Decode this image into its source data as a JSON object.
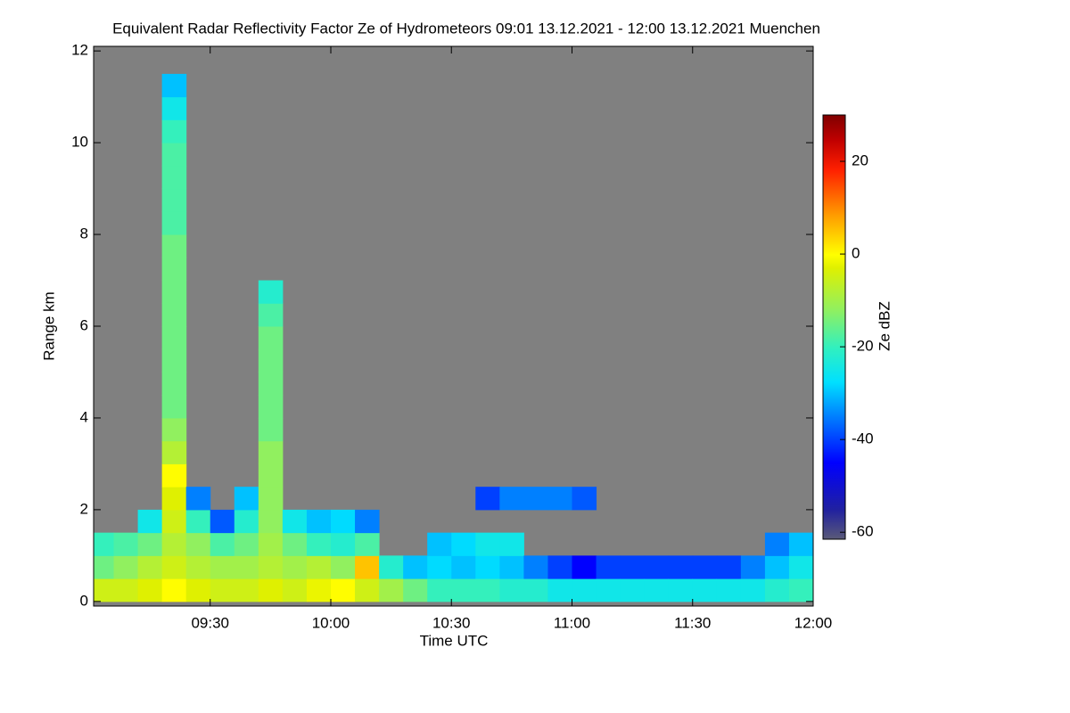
{
  "chart_data": {
    "type": "heatmap",
    "title": "Equivalent Radar Reflectivity Factor Ze of Hydrometeors   09:01 13.12.2021 - 12:00 13.12.2021 Muenchen",
    "xlabel": "Time UTC",
    "ylabel": "Range km",
    "colorbar_label": "Ze dBZ",
    "xlim": [
      9.0167,
      12.0
    ],
    "ylim": [
      -0.1,
      12.1
    ],
    "xticks": [
      {
        "value": 9.5,
        "label": "09:30"
      },
      {
        "value": 10.0,
        "label": "10:00"
      },
      {
        "value": 10.5,
        "label": "10:30"
      },
      {
        "value": 11.0,
        "label": "11:00"
      },
      {
        "value": 11.5,
        "label": "11:30"
      },
      {
        "value": 12.0,
        "label": "12:00"
      }
    ],
    "yticks": [
      0,
      2,
      4,
      6,
      8,
      10,
      12
    ],
    "zlim": [
      -61.5,
      30
    ],
    "zticks": [
      -60,
      -40,
      -20,
      0,
      20
    ],
    "background": "#808080",
    "xbins": [
      9.0,
      9.1,
      9.2,
      9.3,
      9.4,
      9.5,
      9.6,
      9.7,
      9.8,
      9.9,
      10.0,
      10.1,
      10.2,
      10.3,
      10.4,
      10.5,
      10.6,
      10.7,
      10.8,
      10.9,
      11.0,
      11.1,
      11.2,
      11.3,
      11.4,
      11.5,
      11.6,
      11.7,
      11.8,
      11.9,
      12.0
    ],
    "ybins": [
      0,
      0.5,
      1,
      1.5,
      2,
      2.5,
      3,
      3.5,
      4,
      4.5,
      5,
      5.5,
      6,
      6.5,
      7,
      7.5,
      8,
      8.5,
      9,
      9.5,
      10,
      10.5,
      11,
      11.5,
      12
    ],
    "z": [
      [
        -5,
        -15,
        -20,
        null,
        null,
        null,
        null,
        null,
        null,
        null,
        null,
        null,
        null,
        null,
        null,
        null,
        null,
        null,
        null,
        null,
        null,
        null,
        null,
        null
      ],
      [
        -5,
        -12,
        -18,
        null,
        null,
        null,
        null,
        null,
        null,
        null,
        null,
        null,
        null,
        null,
        null,
        null,
        null,
        null,
        null,
        null,
        null,
        null,
        null,
        null
      ],
      [
        -3,
        -8,
        -15,
        -25,
        null,
        null,
        null,
        null,
        null,
        null,
        null,
        null,
        null,
        null,
        null,
        null,
        null,
        null,
        null,
        null,
        null,
        null,
        null,
        null
      ],
      [
        0,
        -5,
        -8,
        -5,
        -3,
        0,
        -8,
        -12,
        -15,
        -15,
        -15,
        -15,
        -15,
        -15,
        -15,
        -15,
        -18,
        -18,
        -18,
        -18,
        -20,
        -25,
        -30,
        null
      ],
      [
        -3,
        -8,
        -12,
        -20,
        -35,
        null,
        null,
        null,
        null,
        null,
        null,
        null,
        null,
        null,
        null,
        null,
        null,
        null,
        null,
        null,
        null,
        null,
        null,
        null
      ],
      [
        -5,
        -10,
        -18,
        -38,
        null,
        null,
        null,
        null,
        null,
        null,
        null,
        null,
        null,
        null,
        null,
        null,
        null,
        null,
        null,
        null,
        null,
        null,
        null,
        null
      ],
      [
        -5,
        -10,
        -15,
        -22,
        -30,
        null,
        null,
        null,
        null,
        null,
        null,
        null,
        null,
        null,
        null,
        null,
        null,
        null,
        null,
        null,
        null,
        null,
        null,
        null
      ],
      [
        -3,
        -8,
        -10,
        -12,
        -12,
        -12,
        -12,
        -15,
        -15,
        -15,
        -15,
        -15,
        -18,
        -22,
        null,
        null,
        null,
        null,
        null,
        null,
        null,
        null,
        null,
        null
      ],
      [
        -5,
        -10,
        -15,
        -25,
        null,
        null,
        null,
        null,
        null,
        null,
        null,
        null,
        null,
        null,
        null,
        null,
        null,
        null,
        null,
        null,
        null,
        null,
        null,
        null
      ],
      [
        -2,
        -8,
        -20,
        -30,
        null,
        null,
        null,
        null,
        null,
        null,
        null,
        null,
        null,
        null,
        null,
        null,
        null,
        null,
        null,
        null,
        null,
        null,
        null,
        null
      ],
      [
        0,
        -12,
        -22,
        -28,
        null,
        null,
        null,
        null,
        null,
        null,
        null,
        null,
        null,
        null,
        null,
        null,
        null,
        null,
        null,
        null,
        null,
        null,
        null,
        null
      ],
      [
        -5,
        5,
        -18,
        -35,
        null,
        null,
        null,
        null,
        null,
        null,
        null,
        null,
        null,
        null,
        null,
        null,
        null,
        null,
        null,
        null,
        null,
        null,
        null,
        null
      ],
      [
        -10,
        -22,
        null,
        null,
        null,
        null,
        null,
        null,
        null,
        null,
        null,
        null,
        null,
        null,
        null,
        null,
        null,
        null,
        null,
        null,
        null,
        null,
        null,
        null
      ],
      [
        -15,
        -30,
        null,
        null,
        null,
        null,
        null,
        null,
        null,
        null,
        null,
        null,
        null,
        null,
        null,
        null,
        null,
        null,
        null,
        null,
        null,
        null,
        null,
        null
      ],
      [
        -20,
        -28,
        -30,
        null,
        null,
        null,
        null,
        null,
        null,
        null,
        null,
        null,
        null,
        null,
        null,
        null,
        null,
        null,
        null,
        null,
        null,
        null,
        null,
        null
      ],
      [
        -20,
        -30,
        -28,
        null,
        null,
        null,
        null,
        null,
        null,
        null,
        null,
        null,
        null,
        null,
        null,
        null,
        null,
        null,
        null,
        null,
        null,
        null,
        null,
        null
      ],
      [
        -20,
        -28,
        -25,
        null,
        -40,
        null,
        null,
        null,
        null,
        null,
        null,
        null,
        null,
        null,
        null,
        null,
        null,
        null,
        null,
        null,
        null,
        null,
        null,
        null
      ],
      [
        -22,
        -30,
        -25,
        null,
        -35,
        null,
        null,
        null,
        null,
        null,
        null,
        null,
        null,
        null,
        null,
        null,
        null,
        null,
        null,
        null,
        null,
        null,
        null,
        null
      ],
      [
        -22,
        -35,
        null,
        null,
        -35,
        null,
        null,
        null,
        null,
        null,
        null,
        null,
        null,
        null,
        null,
        null,
        null,
        null,
        null,
        null,
        null,
        null,
        null,
        null
      ],
      [
        -25,
        -40,
        null,
        null,
        -35,
        null,
        null,
        null,
        null,
        null,
        null,
        null,
        null,
        null,
        null,
        null,
        null,
        null,
        null,
        null,
        null,
        null,
        null,
        null
      ],
      [
        -25,
        -45,
        null,
        null,
        -38,
        null,
        null,
        null,
        null,
        null,
        null,
        null,
        null,
        null,
        null,
        null,
        null,
        null,
        null,
        null,
        null,
        null,
        null,
        null
      ],
      [
        -25,
        -40,
        null,
        null,
        null,
        null,
        null,
        null,
        null,
        null,
        null,
        null,
        null,
        null,
        null,
        null,
        null,
        null,
        null,
        null,
        null,
        null,
        null,
        null
      ],
      [
        -25,
        -40,
        null,
        null,
        null,
        null,
        null,
        null,
        null,
        null,
        null,
        null,
        null,
        null,
        null,
        null,
        null,
        null,
        null,
        null,
        null,
        null,
        null,
        null
      ],
      [
        -25,
        -40,
        null,
        null,
        null,
        null,
        null,
        null,
        null,
        null,
        null,
        null,
        null,
        null,
        null,
        null,
        null,
        null,
        null,
        null,
        null,
        null,
        null,
        null
      ],
      [
        -25,
        -40,
        null,
        null,
        null,
        null,
        null,
        null,
        null,
        null,
        null,
        null,
        null,
        null,
        null,
        null,
        null,
        null,
        null,
        null,
        null,
        null,
        null,
        null
      ],
      [
        -25,
        -40,
        null,
        null,
        null,
        null,
        null,
        null,
        null,
        null,
        null,
        null,
        null,
        null,
        null,
        null,
        null,
        null,
        null,
        null,
        null,
        null,
        null,
        null
      ],
      [
        -25,
        -40,
        null,
        null,
        null,
        null,
        null,
        null,
        null,
        null,
        null,
        null,
        null,
        null,
        null,
        null,
        null,
        null,
        null,
        null,
        null,
        null,
        null,
        null
      ],
      [
        -25,
        -35,
        null,
        null,
        null,
        null,
        null,
        null,
        null,
        null,
        null,
        null,
        null,
        null,
        null,
        null,
        null,
        null,
        null,
        null,
        null,
        null,
        null,
        null
      ],
      [
        -22,
        -30,
        -35,
        null,
        null,
        null,
        null,
        null,
        null,
        null,
        null,
        null,
        null,
        null,
        null,
        null,
        null,
        null,
        null,
        null,
        null,
        null,
        null,
        null
      ],
      [
        -20,
        -25,
        -30,
        null,
        null,
        null,
        null,
        null,
        null,
        null,
        null,
        null,
        null,
        null,
        null,
        null,
        null,
        null,
        null,
        null,
        null,
        null,
        null,
        null
      ]
    ]
  }
}
